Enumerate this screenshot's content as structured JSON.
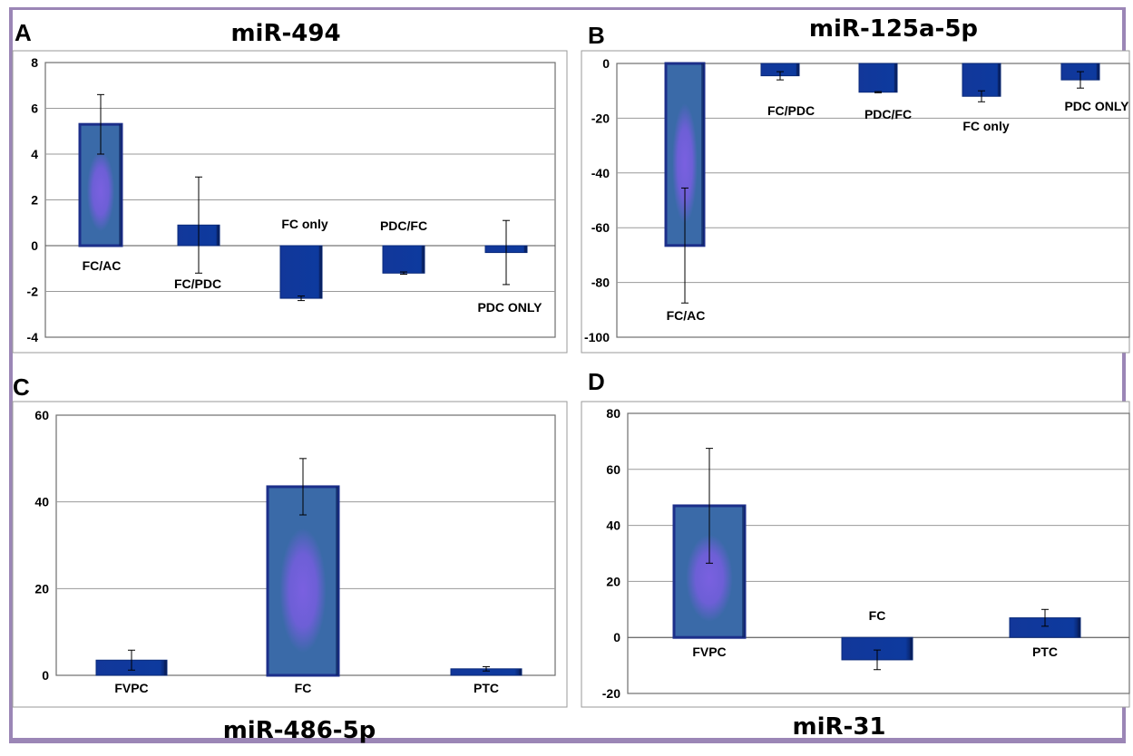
{
  "colors": {
    "bar_dark": "#0d3a9e",
    "bar_mid": "#3a6aa8",
    "bar_glow": "#7a60e0",
    "frame": "#9b86b6"
  },
  "chart_data": [
    {
      "letter": "A",
      "title": "miR-494",
      "type": "bar",
      "ylim": [
        -4,
        8
      ],
      "yticks": [
        -4,
        -2,
        0,
        2,
        4,
        6,
        8
      ],
      "grid": true,
      "categories": [
        "FC/AC",
        "FC/PDC",
        "FC only",
        "PDC/FC",
        "PDC ONLY"
      ],
      "values": [
        5.3,
        0.9,
        -2.3,
        -1.2,
        -0.3
      ],
      "errors": [
        1.3,
        2.1,
        0.1,
        0.05,
        1.4
      ],
      "style": [
        "tall",
        "flat",
        "flat",
        "flat",
        "flat"
      ]
    },
    {
      "letter": "B",
      "title": "miR-125a-5p",
      "type": "bar",
      "ylim": [
        -100,
        0
      ],
      "yticks": [
        -100,
        -80,
        -60,
        -40,
        -20,
        0
      ],
      "grid": true,
      "categories": [
        "FC/AC",
        "FC/PDC",
        "PDC/FC",
        "FC only",
        "PDC ONLY"
      ],
      "values": [
        -66.5,
        -4.5,
        -10.5,
        -12,
        -6
      ],
      "errors": [
        21,
        1.5,
        0.2,
        2,
        3
      ],
      "style": [
        "tall",
        "flat",
        "flat",
        "flat",
        "flat"
      ]
    },
    {
      "letter": "C",
      "title": "miR-486-5p",
      "type": "bar",
      "ylim": [
        0,
        60
      ],
      "yticks": [
        0,
        20,
        40,
        60
      ],
      "grid": true,
      "categories": [
        "FVPC",
        "FC",
        "PTC"
      ],
      "values": [
        3.5,
        43.5,
        1.5
      ],
      "errors": [
        2.3,
        6.5,
        0.5
      ],
      "style": [
        "flat",
        "tall",
        "flat"
      ]
    },
    {
      "letter": "D",
      "title": "miR-31",
      "type": "bar",
      "ylim": [
        -20,
        80
      ],
      "yticks": [
        -20,
        0,
        20,
        40,
        60,
        80
      ],
      "grid": true,
      "categories": [
        "FVPC",
        "FC",
        "PTC"
      ],
      "values": [
        47,
        -8,
        7
      ],
      "errors": [
        20.5,
        3.5,
        3
      ],
      "style": [
        "tall",
        "flat",
        "flat"
      ]
    }
  ]
}
